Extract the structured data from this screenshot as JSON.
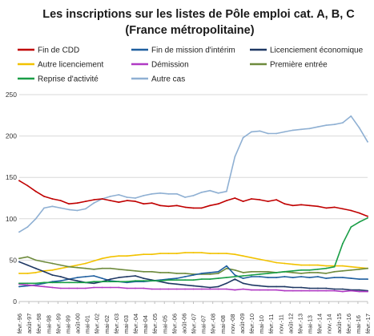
{
  "chart_data": {
    "type": "line",
    "title": "Les inscriptions  sur les listes de Pôle emploi cat. A, B, C",
    "subtitle": "(France métropolitaine)",
    "xlabel": "",
    "ylabel": "",
    "ylim": [
      0,
      250
    ],
    "yticks": [
      0,
      50,
      100,
      150,
      200,
      250
    ],
    "grid": true,
    "legend_position": "top",
    "x_tick_labels": [
      "févr.-96",
      "août-97",
      "févr.-98",
      "mai-98",
      "févr.-99",
      "mai-99",
      "août-00",
      "mai-01",
      "févr.-02",
      "mai-02",
      "févr.-03",
      "mai-03",
      "févr.-04",
      "mai-04",
      "févr.-05",
      "mai-05",
      "févr.-06",
      "août-06",
      "févr.-07",
      "mai-07",
      "févr.-08",
      "mai-08",
      "nov.-08",
      "août-09",
      "févr.-10",
      "mai-10",
      "févr.-11",
      "nov.-11",
      "août-12",
      "févr.-13",
      "mai-13",
      "févr.-14",
      "nov.-14",
      "août-15",
      "févr.-16",
      "mai-16",
      "févr.-17"
    ],
    "x": [
      "1996-02",
      "1996-08",
      "1997-02",
      "1997-08",
      "1998-02",
      "1998-08",
      "1999-02",
      "1999-08",
      "2000-02",
      "2000-08",
      "2001-02",
      "2001-08",
      "2002-02",
      "2002-08",
      "2003-02",
      "2003-08",
      "2004-02",
      "2004-08",
      "2005-02",
      "2005-08",
      "2006-02",
      "2006-08",
      "2007-02",
      "2007-08",
      "2008-02",
      "2008-08",
      "2009-02",
      "2009-08",
      "2010-02",
      "2010-08",
      "2011-02",
      "2011-08",
      "2012-02",
      "2012-08",
      "2013-02",
      "2013-08",
      "2014-02",
      "2014-08",
      "2015-02",
      "2015-08",
      "2016-02",
      "2016-08",
      "2017-02"
    ],
    "series": [
      {
        "name": "Fin de CDD",
        "color": "#c00000",
        "values": [
          146,
          140,
          133,
          127,
          124,
          122,
          118,
          119,
          121,
          123,
          124,
          122,
          120,
          122,
          121,
          118,
          119,
          116,
          115,
          116,
          114,
          113,
          113,
          116,
          118,
          122,
          125,
          121,
          124,
          123,
          121,
          123,
          118,
          116,
          117,
          116,
          115,
          113,
          114,
          112,
          110,
          107,
          103
        ]
      },
      {
        "name": "Fin de mission d'intérim",
        "color": "#1f5f9f",
        "values": [
          18,
          19,
          20,
          22,
          24,
          25,
          27,
          29,
          30,
          31,
          28,
          25,
          24,
          23,
          24,
          24,
          25,
          26,
          27,
          28,
          30,
          32,
          34,
          35,
          36,
          43,
          32,
          28,
          30,
          30,
          29,
          29,
          30,
          29,
          30,
          29,
          30,
          28,
          29,
          29,
          28,
          27,
          27
        ]
      },
      {
        "name": "Licenciement économique",
        "color": "#1f3864",
        "values": [
          48,
          44,
          40,
          36,
          32,
          30,
          27,
          25,
          23,
          22,
          24,
          27,
          29,
          30,
          31,
          28,
          26,
          24,
          22,
          21,
          20,
          19,
          18,
          17,
          18,
          22,
          27,
          22,
          20,
          19,
          18,
          18,
          18,
          17,
          17,
          16,
          16,
          16,
          15,
          15,
          14,
          14,
          13
        ]
      },
      {
        "name": "Autre licenciement",
        "color": "#f2c200",
        "values": [
          34,
          34,
          35,
          37,
          38,
          40,
          42,
          44,
          46,
          49,
          52,
          54,
          55,
          55,
          56,
          57,
          57,
          58,
          58,
          58,
          59,
          59,
          59,
          58,
          58,
          58,
          57,
          55,
          53,
          51,
          49,
          47,
          46,
          45,
          44,
          44,
          44,
          43,
          43,
          43,
          42,
          41,
          40
        ]
      },
      {
        "name": "Démission",
        "color": "#b03ac4",
        "values": [
          21,
          20,
          19,
          18,
          17,
          16,
          16,
          16,
          16,
          17,
          17,
          17,
          17,
          16,
          16,
          16,
          15,
          15,
          15,
          15,
          15,
          15,
          15,
          15,
          15,
          15,
          14,
          15,
          14,
          14,
          14,
          14,
          13,
          13,
          13,
          13,
          13,
          13,
          13,
          12,
          13,
          12,
          12
        ]
      },
      {
        "name": "Première entrée",
        "color": "#6e8b3d",
        "values": [
          52,
          54,
          50,
          48,
          46,
          44,
          42,
          41,
          40,
          39,
          40,
          40,
          39,
          38,
          37,
          36,
          36,
          35,
          35,
          34,
          34,
          33,
          33,
          33,
          34,
          40,
          38,
          35,
          36,
          36,
          36,
          35,
          36,
          35,
          34,
          35,
          35,
          34,
          36,
          37,
          38,
          39,
          40
        ]
      },
      {
        "name": "Reprise d'activité",
        "color": "#1a9e47",
        "values": [
          22,
          22,
          22,
          23,
          23,
          23,
          23,
          23,
          23,
          24,
          24,
          24,
          24,
          24,
          25,
          25,
          25,
          25,
          26,
          26,
          26,
          26,
          27,
          27,
          28,
          29,
          30,
          31,
          32,
          33,
          34,
          35,
          36,
          37,
          38,
          38,
          39,
          40,
          42,
          70,
          90,
          96,
          101
        ]
      },
      {
        "name": "Autre cas",
        "color": "#8fb0d3",
        "values": [
          84,
          90,
          100,
          113,
          115,
          113,
          111,
          110,
          112,
          119,
          124,
          127,
          129,
          126,
          125,
          128,
          130,
          131,
          130,
          130,
          126,
          128,
          132,
          134,
          131,
          133,
          175,
          198,
          205,
          206,
          203,
          203,
          205,
          207,
          208,
          209,
          211,
          213,
          214,
          216,
          224,
          210,
          193
        ]
      }
    ]
  }
}
